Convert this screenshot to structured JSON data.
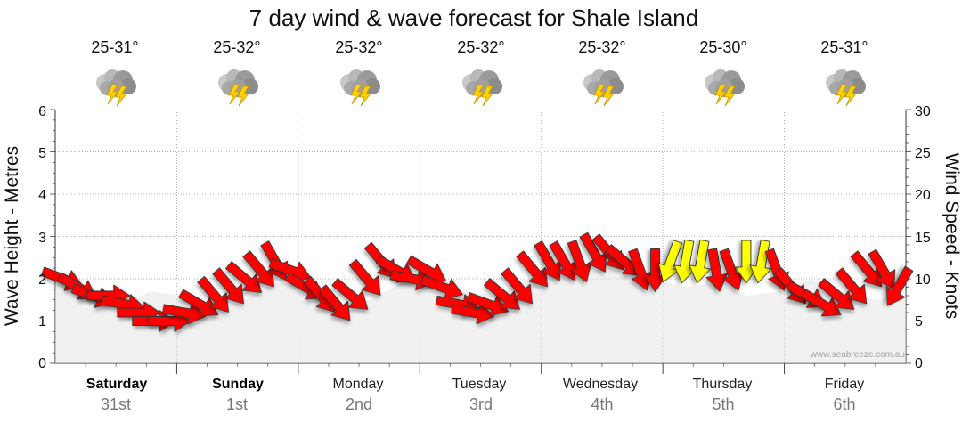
{
  "chart_data": {
    "type": "wind_wave_forecast",
    "title": "7 day wind & wave forecast for Shale Island",
    "ylabel_left": "Wave Height - Metres",
    "ylabel_right": "Wind Speed - Knots",
    "ylim_left": [
      0,
      6
    ],
    "ylim_right": [
      0,
      30
    ],
    "left_ticks": [
      "0",
      "1",
      "2",
      "3",
      "4",
      "5",
      "6"
    ],
    "right_ticks": [
      "0",
      "5",
      "10",
      "15",
      "20",
      "25",
      "30"
    ],
    "watermark": "www.seabreeze.com.au",
    "colors": {
      "strong": "#ff0000",
      "light": "#ffff00",
      "outline": "#333333",
      "wave": "#e6e6e6",
      "grid": "#999999"
    },
    "days": [
      {
        "name": "Saturday",
        "date": "31st",
        "temp": "25-31°",
        "icon": "thunderstorm-icon",
        "bold": true
      },
      {
        "name": "Sunday",
        "date": "1st",
        "temp": "25-32°",
        "icon": "thunderstorm-icon",
        "bold": true
      },
      {
        "name": "Monday",
        "date": "2nd",
        "temp": "25-32°",
        "icon": "thunderstorm-icon",
        "bold": false
      },
      {
        "name": "Tuesday",
        "date": "3rd",
        "temp": "25-32°",
        "icon": "thunderstorm-icon",
        "bold": false
      },
      {
        "name": "Wednesday",
        "date": "4th",
        "temp": "25-32°",
        "icon": "thunderstorm-icon",
        "bold": false
      },
      {
        "name": "Thursday",
        "date": "5th",
        "temp": "25-30°",
        "icon": "thunderstorm-icon",
        "bold": false
      },
      {
        "name": "Friday",
        "date": "6th",
        "temp": "25-31°",
        "icon": "thunderstorm-icon",
        "bold": false
      }
    ],
    "wave_height_m": [
      1.9,
      1.6,
      1.3,
      1.7,
      1.6,
      1.2,
      1.5,
      1.9,
      1.8,
      1.3,
      1.5,
      1.9,
      1.8,
      1.7,
      1.6,
      2.0,
      2.1,
      2.2,
      2.2,
      2.0,
      1.8,
      1.9,
      1.6,
      1.7,
      2.0,
      1.7,
      1.5,
      1.6
    ],
    "wind": {
      "times_hours": [
        0,
        3,
        6,
        9,
        12,
        15,
        18,
        21,
        24,
        27,
        30,
        33,
        36,
        39,
        42,
        45,
        48,
        51,
        54,
        57,
        60,
        63,
        66,
        69,
        72,
        75,
        78,
        81,
        84,
        87,
        90,
        93,
        96,
        99,
        102,
        105,
        108,
        111,
        114,
        117,
        120,
        123,
        126,
        129,
        132,
        135,
        138,
        141,
        144,
        147,
        150,
        153,
        156,
        159,
        162,
        165
      ],
      "speed_knots": [
        10,
        9,
        8,
        8,
        7,
        6,
        5,
        5,
        6,
        7,
        8,
        9,
        10,
        11,
        12,
        11,
        9,
        8,
        7,
        8,
        10,
        12,
        11,
        10,
        11,
        9,
        7,
        6,
        7,
        8,
        9,
        11,
        12,
        12,
        12,
        13,
        13,
        12,
        11,
        11,
        12,
        12,
        12,
        11,
        11,
        12,
        12,
        11,
        9,
        8,
        7,
        8,
        9,
        11,
        11,
        9
      ],
      "direction_deg": [
        290,
        300,
        290,
        270,
        280,
        270,
        270,
        270,
        280,
        300,
        320,
        320,
        310,
        320,
        330,
        290,
        300,
        320,
        320,
        310,
        320,
        320,
        300,
        280,
        300,
        290,
        280,
        280,
        290,
        310,
        320,
        320,
        330,
        330,
        340,
        330,
        320,
        310,
        340,
        0,
        20,
        10,
        10,
        350,
        340,
        0,
        10,
        340,
        320,
        300,
        300,
        310,
        320,
        320,
        330,
        30
      ]
    }
  }
}
